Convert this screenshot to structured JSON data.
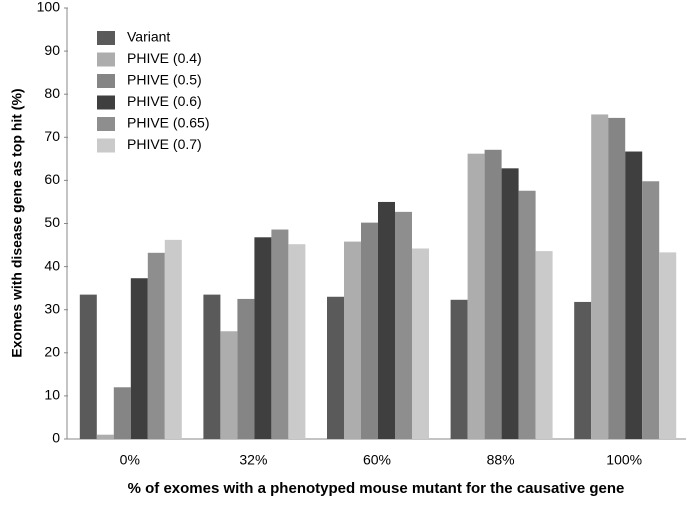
{
  "chart_data": {
    "type": "bar",
    "y_label": "Exomes with disease gene as top hit (%)",
    "x_label": "% of exomes with a phenotyped mouse mutant for the causative gene",
    "categories": [
      "0%",
      "32%",
      "60%",
      "88%",
      "100%"
    ],
    "series": [
      {
        "name": "Variant",
        "color": "#5a5a5a",
        "values": [
          33.5,
          33.5,
          33,
          32.3,
          31.8
        ]
      },
      {
        "name": "PHIVE (0.4)",
        "color": "#adadad",
        "values": [
          1,
          25,
          45.8,
          66.2,
          75.3
        ]
      },
      {
        "name": "PHIVE (0.5)",
        "color": "#858585",
        "values": [
          12,
          32.5,
          50.2,
          67.1,
          74.5
        ]
      },
      {
        "name": "PHIVE (0.6)",
        "color": "#3f3f3f",
        "values": [
          37.3,
          46.8,
          55,
          62.8,
          66.7
        ]
      },
      {
        "name": "PHIVE (0.65)",
        "color": "#8e8e8e",
        "values": [
          43.2,
          48.6,
          52.7,
          57.6,
          59.8
        ]
      },
      {
        "name": "PHIVE (0.7)",
        "color": "#cacaca",
        "values": [
          46.2,
          45.2,
          44.2,
          43.6,
          43.3
        ]
      }
    ],
    "ylim": [
      0,
      100
    ],
    "yticks": [
      0,
      10,
      20,
      30,
      40,
      50,
      60,
      70,
      80,
      90,
      100
    ],
    "grid": false,
    "legend": "upper left"
  }
}
